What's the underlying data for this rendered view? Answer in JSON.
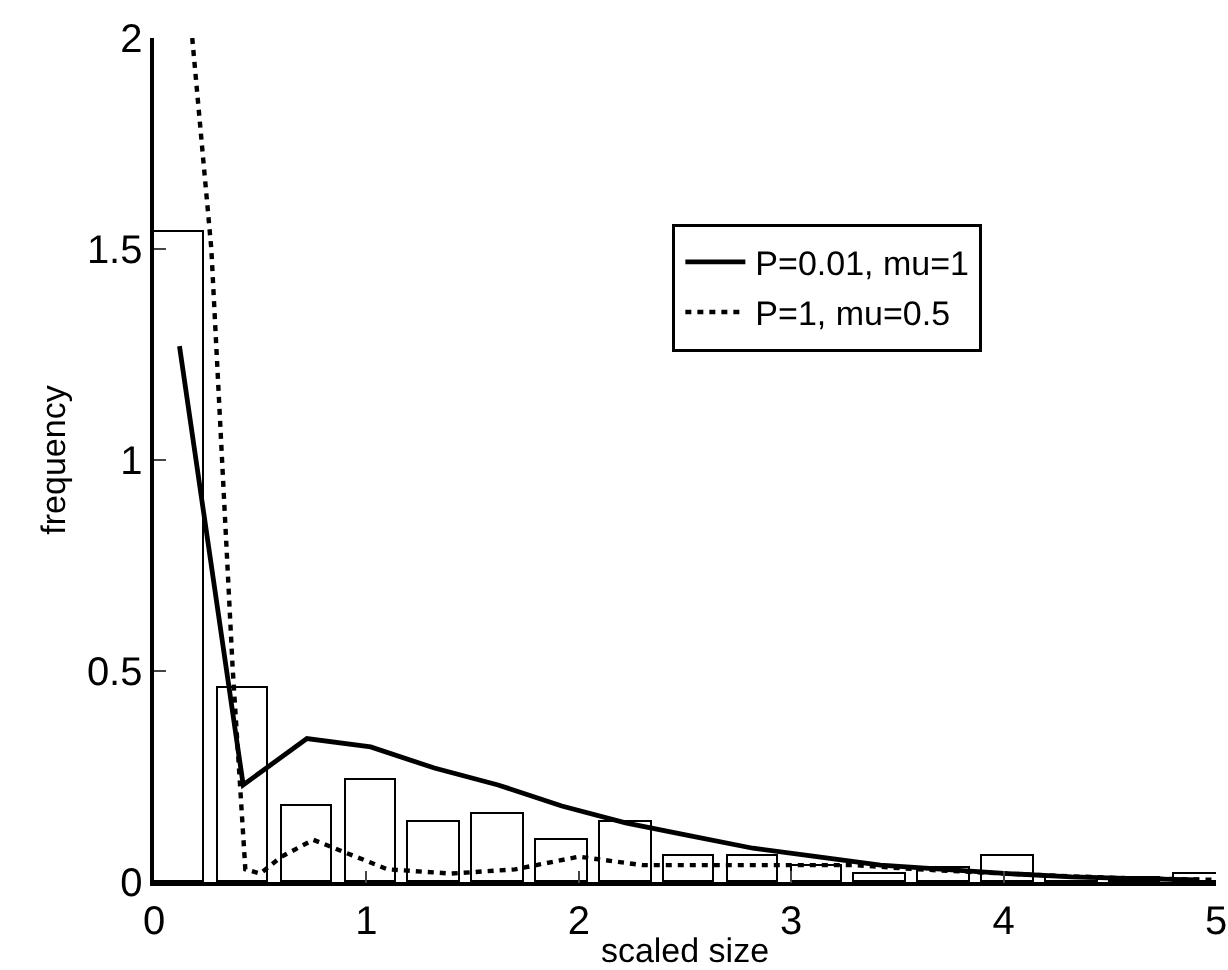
{
  "chart_data": {
    "type": "bar",
    "xlabel": "scaled size",
    "ylabel": "frequency",
    "xlim": [
      0,
      5
    ],
    "ylim": [
      0,
      2
    ],
    "xticks": [
      0,
      1,
      2,
      3,
      4,
      5
    ],
    "yticks": [
      0,
      0.5,
      1,
      1.5,
      2
    ],
    "grid": false,
    "legend": "top right",
    "x": [
      0.12,
      0.42,
      0.72,
      1.02,
      1.32,
      1.62,
      1.92,
      2.22,
      2.52,
      2.82,
      3.12,
      3.42,
      3.72,
      4.02,
      4.32,
      4.62,
      4.92
    ],
    "series": [
      {
        "color": "#000000",
        "values": [
          1.54,
          0.46,
          0.18,
          0.24,
          0.14,
          0.16,
          0.1,
          0.14,
          0.06,
          0.06,
          0.04,
          0.02,
          0.035,
          0.06,
          0.01,
          0.01,
          0.02
        ]
      },
      {
        "type": "line",
        "name": "P=0.01, mu=1",
        "color": "#000000",
        "line_style": "solid",
        "values": [
          1.27,
          0.23,
          0.34,
          0.32,
          0.27,
          0.23,
          0.18,
          0.14,
          0.11,
          0.08,
          0.06,
          0.04,
          0.03,
          0.02,
          0.012,
          0.008,
          0.005
        ]
      },
      {
        "type": "line",
        "name": "P=1, mu=0.5",
        "color": "#000000",
        "line_style": "dotted",
        "x": [
          0.18,
          0.27,
          0.37,
          0.43,
          0.5,
          0.6,
          0.75,
          0.9,
          1.1,
          1.4,
          1.7,
          2.0,
          2.3,
          2.6,
          3.0,
          3.3,
          3.6,
          4.0,
          4.5,
          5.0
        ],
        "values": [
          2.0,
          1.5,
          0.51,
          0.03,
          0.02,
          0.06,
          0.1,
          0.07,
          0.03,
          0.02,
          0.03,
          0.06,
          0.04,
          0.04,
          0.04,
          0.04,
          0.03,
          0.02,
          0.01,
          0.005
        ]
      }
    ]
  }
}
